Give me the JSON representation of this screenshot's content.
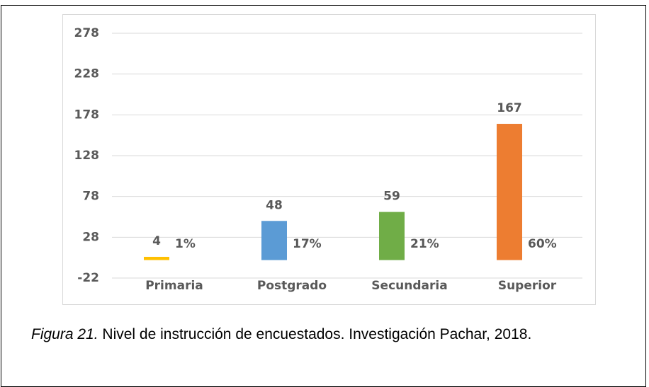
{
  "chart_data": {
    "type": "bar",
    "categories": [
      "Primaria",
      "Postgrado",
      "Secundaria",
      "Superior"
    ],
    "values": [
      4,
      48,
      59,
      167
    ],
    "percentage_labels": [
      "1%",
      "17%",
      "21%",
      "60%"
    ],
    "colors": [
      "#ffc000",
      "#5b9bd5",
      "#70ad47",
      "#ed7d31"
    ],
    "ylim": [
      -22,
      278
    ],
    "yticks": [
      -22,
      28,
      78,
      128,
      178,
      228,
      278
    ],
    "grid": true
  },
  "caption": {
    "label": "Figura 21.",
    "text": "Nivel de instrucción de encuestados. Investigación Pachar, 2018."
  }
}
